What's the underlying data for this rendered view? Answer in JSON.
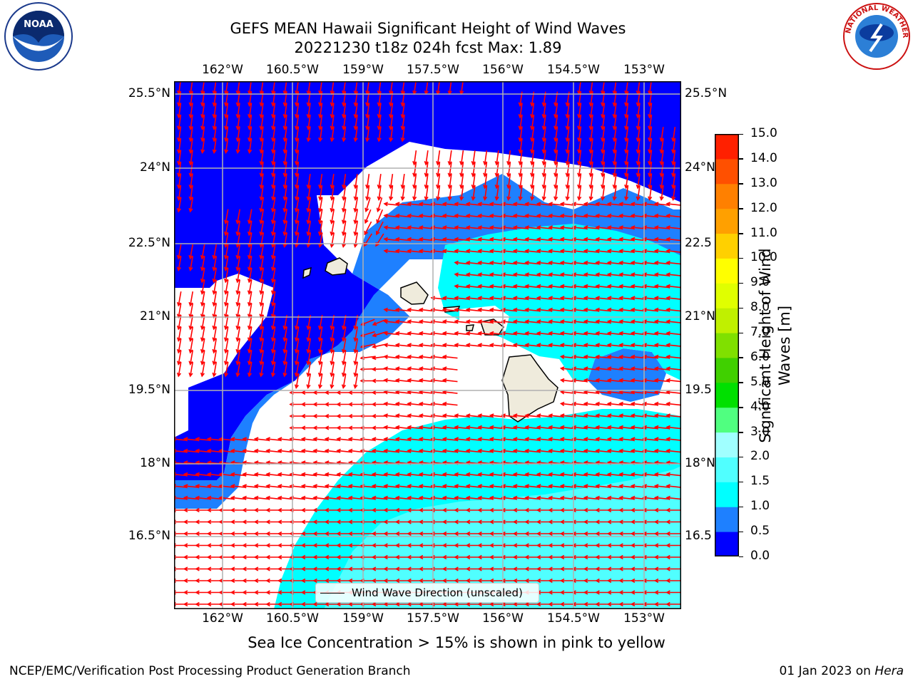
{
  "title_line1": "GEFS MEAN Hawaii Significant Height of Wind Waves",
  "title_line2": "20221230 t18z 024h fcst   Max: 1.89",
  "lon_ticks": [
    "162°W",
    "160.5°W",
    "159°W",
    "157.5°W",
    "156°W",
    "154.5°W",
    "153°W"
  ],
  "lat_ticks_left": [
    "25.5°N",
    "24°N",
    "22.5°N",
    "21°N",
    "19.5°N",
    "18°N",
    "16.5°N"
  ],
  "lat_ticks_right": [
    "25.5°N",
    "24°N",
    "22.5",
    "21°N",
    "19.5",
    "18°N",
    "16.5"
  ],
  "legend_label": "Wind Wave Direction (unscaled)",
  "colorbar": {
    "label_line1": "Significant Height of Wind",
    "label_line2": "Waves [m]",
    "ticks": [
      "0.0",
      "0.5",
      "1.0",
      "1.5",
      "2.0",
      "3.0",
      "4.0",
      "5.0",
      "6.0",
      "7.0",
      "8.0",
      "9.0",
      "10.0",
      "11.0",
      "12.0",
      "13.0",
      "14.0",
      "15.0"
    ],
    "colors": [
      "#0000ff",
      "#1e80ff",
      "#00ffff",
      "#50ffff",
      "#a0ffff",
      "#50ff80",
      "#00e000",
      "#40d000",
      "#80e000",
      "#c0f000",
      "#e0ff00",
      "#ffff00",
      "#ffd000",
      "#ffa000",
      "#ff8000",
      "#ff5000",
      "#ff2000"
    ]
  },
  "map_colors": {
    "band_0_0_5": "#0000ff",
    "band_0_5_1_0": "#1e80ff",
    "band_1_0_1_5": "#00ffff",
    "band_1_5_2_0": "#50ffff",
    "arrow": "#ff0000",
    "land": "#efebdc"
  },
  "sea_ice_note": "Sea Ice Concentration > 15% is shown in pink to yellow",
  "footer_left": "NCEP/EMC/Verification Post Processing Product Generation Branch",
  "footer_date": "01 Jan 2023 on ",
  "footer_machine": "Hera",
  "logos": {
    "left": "NOAA",
    "right": "NATIONAL WEATHER SERVICE"
  }
}
